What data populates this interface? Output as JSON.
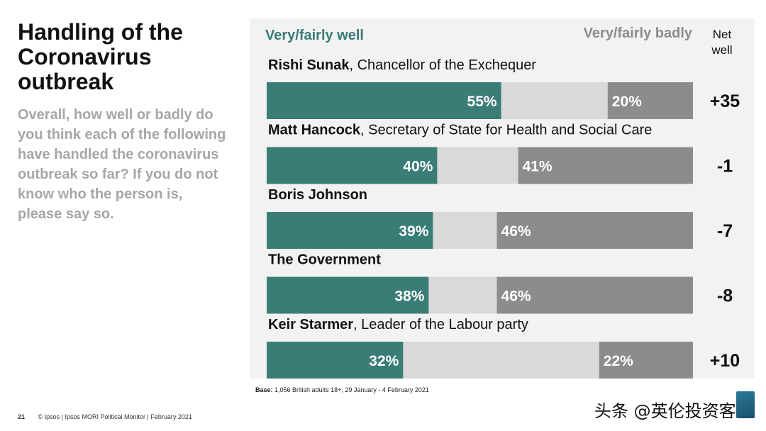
{
  "title": "Handling of the Coronavirus outbreak",
  "question": "Overall, how well or badly do you think each of the following have handled the coronavirus outbreak so far?  If you do not know who the person is, please say so.",
  "base_label": "Base:",
  "base_text": "1,056 British adults 18+, 29 January - 4 February 2021",
  "page_number": "21",
  "footer_text": "© Ipsos | Ipsos MORI Political Monitor | February 2021",
  "watermark": "头条 @英伦投资客",
  "colors": {
    "well": "#3a7c76",
    "neutral": "#d9d9d9",
    "badly": "#8c8c8c",
    "panel": "#f2f2f2"
  },
  "chart_data": {
    "type": "bar",
    "stacked": true,
    "orientation": "horizontal",
    "legend": {
      "well": "Very/fairly well",
      "badly": "Very/fairly badly",
      "net": "Net well"
    },
    "categories": [
      {
        "name": "Rishi Sunak",
        "role": ", Chancellor of the Exchequer"
      },
      {
        "name": "Matt Hancock",
        "role": ", Secretary of State for Health and Social Care"
      },
      {
        "name": "Boris Johnson",
        "role": ""
      },
      {
        "name": "The Government",
        "role": ""
      },
      {
        "name": "Keir Starmer",
        "role": ", Leader of the Labour party"
      }
    ],
    "series": [
      {
        "name": "Very/fairly well",
        "values": [
          55,
          40,
          39,
          38,
          32
        ]
      },
      {
        "name": "Very/fairly badly",
        "values": [
          20,
          41,
          46,
          46,
          22
        ]
      }
    ],
    "net": [
      "+35",
      "-1",
      "-7",
      "-8",
      "+10"
    ],
    "value_suffix": "%",
    "xlim": [
      0,
      100
    ]
  }
}
